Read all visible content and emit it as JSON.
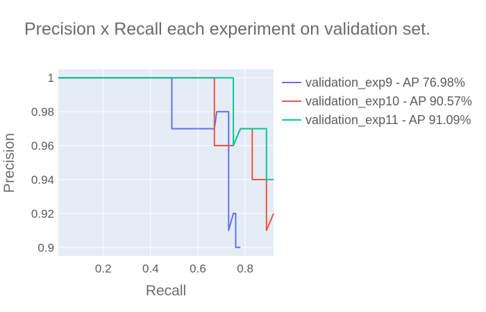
{
  "chart_data": {
    "type": "line",
    "line_shape": "step",
    "title": "Precision x Recall each experiment on validation set.",
    "xlabel": "Recall",
    "ylabel": "Precision",
    "xlim": [
      0.01,
      0.92
    ],
    "ylim": [
      0.895,
      1.005
    ],
    "xticks": [
      0.2,
      0.4,
      0.6,
      0.8
    ],
    "xtick_labels": [
      "0.2",
      "0.4",
      "0.6",
      "0.8"
    ],
    "yticks": [
      0.9,
      0.92,
      0.94,
      0.96,
      0.98,
      1.0
    ],
    "ytick_labels": [
      "0.9",
      "0.92",
      "0.94",
      "0.96",
      "0.98",
      "1"
    ],
    "grid": true,
    "plot_background": "#e5ecf6",
    "legend_position": "right",
    "series": [
      {
        "name": "validation_exp9 - AP 76.98%",
        "color": "#636efa",
        "x": [
          0.01,
          0.49,
          0.49,
          0.67,
          0.68,
          0.73,
          0.73,
          0.75,
          0.76,
          0.76,
          0.78
        ],
        "y": [
          1.0,
          1.0,
          0.97,
          0.97,
          0.98,
          0.98,
          0.91,
          0.92,
          0.92,
          0.9,
          0.9
        ]
      },
      {
        "name": "validation_exp10 - AP 90.57%",
        "color": "#ef553b",
        "x": [
          0.01,
          0.67,
          0.67,
          0.75,
          0.78,
          0.83,
          0.83,
          0.89,
          0.89,
          0.92
        ],
        "y": [
          1.0,
          1.0,
          0.96,
          0.96,
          0.97,
          0.97,
          0.94,
          0.94,
          0.91,
          0.92
        ]
      },
      {
        "name": "validation_exp11 - AP 91.09%",
        "color": "#00cc96",
        "x": [
          0.01,
          0.75,
          0.75,
          0.78,
          0.89,
          0.89,
          0.92
        ],
        "y": [
          1.0,
          1.0,
          0.96,
          0.97,
          0.97,
          0.94,
          0.94
        ]
      }
    ]
  }
}
